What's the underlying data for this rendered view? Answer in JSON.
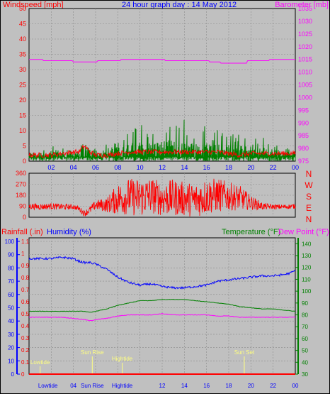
{
  "colors": {
    "background": "#c0c0c0",
    "plot": "#c0c0c0",
    "grid": "#8a8a8a",
    "windspeed": "#ff0000",
    "windgust": "#008000",
    "barometer": "#ff00ff",
    "direction": "#ff0000",
    "rainfall": "#ff0000",
    "humidity": "#0000ff",
    "temperature": "#008000",
    "dewpoint": "#ff00ff",
    "title": "#0000ff",
    "tide_marker": "#ffff80"
  },
  "header": {
    "title": "24 hour graph day : 14 May 2012",
    "left_axis_label": "Windspeed [mph]",
    "right_axis_label": "Barometer [mb]"
  },
  "panel3_labels": {
    "rainfall": "Rainfall (.in)",
    "humidity": "Humidity (%)",
    "temperature": "Temperature (°F)",
    "dewpoint": "Dew Point (°F)"
  },
  "compass_labels": [
    "N",
    "W",
    "S",
    "E",
    "N"
  ],
  "x_ticks_top": [
    "02",
    "04",
    "06",
    "08",
    "10",
    "12",
    "14",
    "16",
    "18",
    "20",
    "22",
    "00"
  ],
  "x_ticks_bottom": [
    "Lowtide",
    "04",
    "Sun Rise",
    "Hightide",
    "12",
    "14",
    "16",
    "18",
    "20",
    "22",
    "00"
  ],
  "events": [
    {
      "label": "Lowtide",
      "hour": 1.0
    },
    {
      "label": "Sun Rise",
      "hour": 5.7
    },
    {
      "label": "Hightide",
      "hour": 8.4
    },
    {
      "label": "Sun Set",
      "hour": 19.4
    }
  ],
  "chart_data": [
    {
      "type": "line",
      "title": "24 hour graph day : 14 May 2012",
      "x_range_hours": [
        0,
        24
      ],
      "x_tick_labels": [
        "02",
        "04",
        "06",
        "08",
        "10",
        "12",
        "14",
        "16",
        "18",
        "20",
        "22",
        "00"
      ],
      "left_axis": {
        "label": "Windspeed [mph]",
        "range": [
          0,
          50
        ],
        "ticks": [
          0,
          5,
          10,
          15,
          20,
          25,
          30,
          35,
          40,
          45,
          50
        ]
      },
      "right_axis": {
        "label": "Barometer [mb]",
        "range": [
          975,
          1035
        ],
        "ticks": [
          975,
          980,
          985,
          990,
          995,
          1000,
          1005,
          1010,
          1015,
          1020,
          1025,
          1030,
          1035
        ]
      },
      "grid": true,
      "series": [
        {
          "name": "Windspeed",
          "color": "#ff0000",
          "axis": "left",
          "hours": [
            0,
            1,
            2,
            3,
            4,
            4.5,
            5,
            5.5,
            6,
            7,
            8,
            9,
            10,
            11,
            12,
            13,
            14,
            15,
            16,
            17,
            18,
            19,
            20,
            21,
            22,
            23,
            24
          ],
          "values": [
            2,
            2,
            2,
            2.5,
            3,
            3,
            5,
            3,
            2,
            2,
            2.5,
            3,
            3,
            3,
            3,
            3,
            3,
            3,
            3,
            3,
            2.5,
            2,
            2.5,
            2.5,
            2.5,
            2.5,
            2.5
          ]
        },
        {
          "name": "Wind Gust",
          "color": "#008000",
          "axis": "left",
          "hours": [
            0,
            1,
            2,
            3,
            4,
            4.5,
            5,
            5.5,
            6,
            7,
            8,
            9,
            10,
            11,
            12,
            13,
            14,
            15,
            16,
            17,
            18,
            19,
            20,
            21,
            22,
            23,
            24
          ],
          "values": [
            4,
            5,
            5,
            5,
            6,
            7,
            13,
            7,
            4,
            6,
            9,
            11,
            12,
            12,
            13,
            13,
            14,
            12,
            12,
            11,
            10,
            9,
            9,
            8,
            7,
            5,
            5
          ]
        },
        {
          "name": "Barometer",
          "color": "#ff00ff",
          "axis": "right",
          "hours": [
            0,
            1.2,
            1.3,
            3.9,
            4,
            6.1,
            6.2,
            8.2,
            8.3,
            12.2,
            12.3,
            16.2,
            16.3,
            17.2,
            17.3,
            19.6,
            19.7,
            21.6,
            21.7,
            24
          ],
          "values": [
            1015,
            1015,
            1014.5,
            1014.5,
            1014,
            1014,
            1014.5,
            1014.5,
            1015,
            1015,
            1014.5,
            1014.5,
            1014,
            1014,
            1013.5,
            1013.5,
            1014.5,
            1014.5,
            1015,
            1015
          ]
        }
      ]
    },
    {
      "type": "line",
      "x_range_hours": [
        0,
        24
      ],
      "left_axis": {
        "range": [
          0,
          360
        ],
        "ticks": [
          0,
          90,
          180,
          270,
          360
        ]
      },
      "right_axis_labels": [
        "N",
        "W",
        "S",
        "E",
        "N"
      ],
      "grid": true,
      "series": [
        {
          "name": "Wind Direction",
          "color": "#ff0000",
          "hours": [
            0,
            1,
            2,
            3,
            4,
            4.5,
            5,
            5.5,
            6,
            7,
            8,
            9,
            10,
            11,
            12,
            13,
            14,
            15,
            16,
            17,
            18,
            19,
            20,
            21,
            22,
            23,
            24
          ],
          "values": [
            90,
            85,
            90,
            85,
            85,
            70,
            30,
            60,
            100,
            100,
            150,
            170,
            160,
            180,
            150,
            160,
            150,
            140,
            170,
            180,
            170,
            160,
            120,
            90,
            85,
            85,
            90
          ],
          "spread": [
            25,
            25,
            25,
            25,
            20,
            20,
            25,
            30,
            40,
            60,
            130,
            150,
            160,
            150,
            140,
            150,
            140,
            140,
            150,
            140,
            120,
            100,
            60,
            30,
            20,
            20,
            20
          ]
        }
      ]
    },
    {
      "type": "line",
      "x_range_hours": [
        0,
        24
      ],
      "x_tick_labels": [
        "Lowtide",
        "04",
        "Sun Rise",
        "Hightide",
        "12",
        "14",
        "16",
        "18",
        "20",
        "22",
        "00"
      ],
      "left_axis_rain": {
        "label": "Rainfall (.in)",
        "range": [
          0,
          1.1
        ],
        "ticks": [
          0,
          0.1,
          0.2,
          0.3,
          0.4,
          0.5,
          0.6,
          0.7,
          0.8,
          0.9,
          1,
          1.1
        ]
      },
      "left_axis_humidity": {
        "label": "Humidity (%)",
        "range": [
          0,
          100
        ],
        "ticks": [
          0,
          10,
          20,
          30,
          40,
          50,
          60,
          70,
          80,
          90,
          100
        ]
      },
      "right_axis": {
        "label": "Temperature (°F)",
        "range": [
          30,
          145
        ],
        "ticks": [
          30,
          40,
          50,
          60,
          70,
          80,
          90,
          100,
          110,
          120,
          130,
          140
        ]
      },
      "grid": true,
      "series": [
        {
          "name": "Rainfall",
          "color": "#ff0000",
          "axis": "rain",
          "hours": [
            0,
            24
          ],
          "values": [
            0,
            0
          ]
        },
        {
          "name": "Humidity",
          "color": "#0000ff",
          "axis": "humidity",
          "hours": [
            0,
            1,
            2,
            3,
            4,
            4.5,
            5,
            5.5,
            6,
            7,
            8,
            9,
            10,
            11,
            12,
            13,
            14,
            15,
            16,
            17,
            18,
            19,
            20,
            21,
            22,
            23,
            23.5,
            24
          ],
          "values": [
            87,
            87,
            87,
            88,
            87,
            85,
            84,
            84,
            83,
            79,
            73,
            69,
            67,
            68,
            66,
            65,
            65,
            66,
            67,
            70,
            71,
            72,
            73,
            74,
            74,
            75,
            76,
            78
          ]
        },
        {
          "name": "Temperature",
          "color": "#008000",
          "axis": "right",
          "hours": [
            0,
            1,
            2,
            3,
            4,
            5,
            5.5,
            6,
            7,
            8,
            9,
            10,
            11,
            12,
            13,
            14,
            15,
            16,
            17,
            18,
            19,
            20,
            21,
            22,
            23,
            24
          ],
          "values": [
            83,
            83,
            83,
            83,
            83,
            83,
            82,
            83,
            85,
            88,
            90,
            92,
            92,
            93,
            93,
            93,
            92,
            91,
            90,
            89,
            87,
            86,
            85,
            85,
            84,
            83
          ]
        },
        {
          "name": "Dew Point",
          "color": "#ff00ff",
          "axis": "right",
          "hours": [
            0,
            1,
            2,
            3,
            4,
            5,
            5.5,
            6,
            7,
            8,
            9,
            10,
            11,
            12,
            13,
            14,
            15,
            16,
            17,
            18,
            19,
            20,
            21,
            22,
            23,
            24
          ],
          "values": [
            78,
            78,
            78,
            78,
            77,
            76,
            75,
            76,
            77,
            79,
            80,
            80,
            80,
            81,
            80,
            80,
            80,
            80,
            79,
            79,
            78,
            78,
            78,
            78,
            78,
            78
          ]
        }
      ]
    }
  ]
}
